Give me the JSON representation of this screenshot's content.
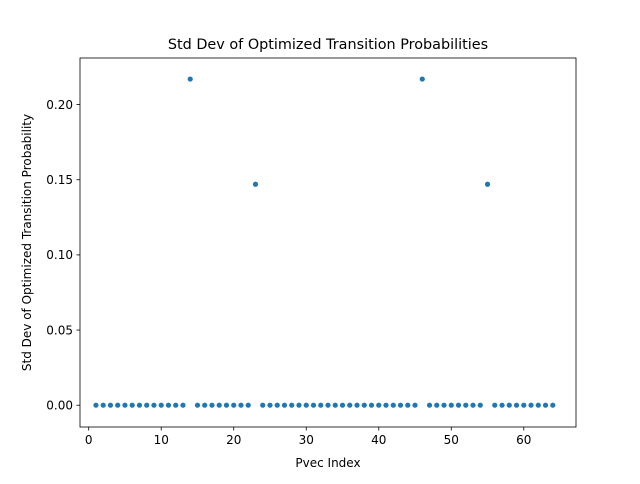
{
  "chart_data": {
    "type": "scatter",
    "title": "Std Dev of Optimized Transition Probabilities",
    "xlabel": "Pvec Index",
    "ylabel": "Std Dev of Optimized Transition Probability",
    "xlim": [
      -1.2,
      67.2
    ],
    "ylim": [
      -0.0145,
      0.231
    ],
    "xticks": [
      0,
      10,
      20,
      30,
      40,
      50,
      60
    ],
    "xtick_labels": [
      "0",
      "10",
      "20",
      "30",
      "40",
      "50",
      "60"
    ],
    "yticks": [
      0.0,
      0.05,
      0.1,
      0.15,
      0.2
    ],
    "ytick_labels": [
      "0.00",
      "0.05",
      "0.10",
      "0.15",
      "0.20"
    ],
    "grid": false,
    "marker_color": "#1f77b4",
    "x": [
      1,
      2,
      3,
      4,
      5,
      6,
      7,
      8,
      9,
      10,
      11,
      12,
      13,
      14,
      15,
      16,
      17,
      18,
      19,
      20,
      21,
      22,
      23,
      24,
      25,
      26,
      27,
      28,
      29,
      30,
      31,
      32,
      33,
      34,
      35,
      36,
      37,
      38,
      39,
      40,
      41,
      42,
      43,
      44,
      45,
      46,
      47,
      48,
      49,
      50,
      51,
      52,
      53,
      54,
      55,
      56,
      57,
      58,
      59,
      60,
      61,
      62,
      63,
      64
    ],
    "y": [
      0,
      0,
      0,
      0,
      0,
      0,
      0,
      0,
      0,
      0,
      0,
      0,
      0,
      0.217,
      0,
      0,
      0,
      0,
      0,
      0,
      0,
      0,
      0.147,
      0,
      0,
      0,
      0,
      0,
      0,
      0,
      0,
      0,
      0,
      0,
      0,
      0,
      0,
      0,
      0,
      0,
      0,
      0,
      0,
      0,
      0,
      0.217,
      0,
      0,
      0,
      0,
      0,
      0,
      0,
      0,
      0.147,
      0,
      0,
      0,
      0,
      0,
      0,
      0,
      0,
      0
    ]
  }
}
